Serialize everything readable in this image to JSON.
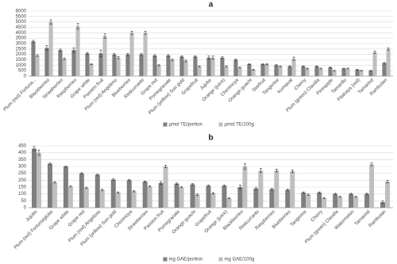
{
  "chart_data": [
    {
      "type": "bar",
      "title": "a",
      "categories": [
        "Plum (red) Fortuna...",
        "Blackberries",
        "Strawberries",
        "Raspberries",
        "Grape white",
        "Passion fruit",
        "Plum (red) Angeleno",
        "Blueberries",
        "Redcurrants",
        "Grape red",
        "Pomegranate",
        "Plum (yellow) Sun gold",
        "Grapefruit",
        "Jujube",
        "Orange (juice)",
        "Cherimoya",
        "Orange guachi",
        "Starfruit",
        "Tangerine",
        "Kumquat",
        "Cherry",
        "Plum (green) Claudia",
        "Pineapple",
        "Tamarillo",
        "Pitahaya (red)",
        "Tamarind",
        "Rambutan"
      ],
      "series": [
        {
          "name": "µmol TE/portion",
          "color": "#7f7f7f",
          "values": [
            3200,
            2600,
            2400,
            2400,
            2100,
            2100,
            2000,
            2000,
            2000,
            1900,
            1900,
            1800,
            1800,
            1700,
            1700,
            1500,
            1100,
            1100,
            1000,
            900,
            900,
            900,
            800,
            700,
            600,
            500,
            1200
          ],
          "errors": [
            100,
            200,
            100,
            200,
            80,
            300,
            100,
            100,
            100,
            80,
            80,
            80,
            80,
            150,
            80,
            80,
            50,
            60,
            50,
            60,
            50,
            50,
            40,
            40,
            40,
            30,
            60
          ]
        },
        {
          "name": "µmol TE/100g",
          "color": "#bfbfbf",
          "values": [
            1900,
            5000,
            1600,
            4600,
            1100,
            3700,
            1700,
            4000,
            4000,
            1000,
            1500,
            1400,
            900,
            1700,
            900,
            800,
            600,
            1100,
            900,
            1600,
            700,
            700,
            500,
            700,
            500,
            2200,
            2500
          ],
          "errors": [
            80,
            200,
            80,
            250,
            50,
            200,
            100,
            150,
            150,
            50,
            80,
            80,
            50,
            150,
            60,
            60,
            40,
            60,
            50,
            150,
            40,
            40,
            30,
            40,
            40,
            100,
            100
          ]
        }
      ],
      "ylim": [
        0,
        6000
      ],
      "yticks": [
        0,
        500,
        1000,
        1500,
        2000,
        2500,
        3000,
        3500,
        4000,
        4500,
        5000,
        5500,
        6000
      ],
      "grid": true,
      "legend": "bottom"
    },
    {
      "type": "bar",
      "title": "b",
      "categories": [
        "Jujube",
        "Plum (red) Fortuna/globe",
        "Grape white",
        "Grape red",
        "Plum (red) Angeleno",
        "Plum (yellow) Sun gold",
        "Cherimoya",
        "Strawberries",
        "Passion fruit",
        "Pomegranate",
        "Orange guachi",
        "Grapefruit",
        "Orange (juice)",
        "Blackberries",
        "Redcurrants",
        "Raspberries",
        "Blueberries",
        "Tangerine",
        "Cherry",
        "Plum (green) Claudia",
        "Watermelon",
        "Tamarind",
        "Rambutan"
      ],
      "series": [
        {
          "name": "mg GAE/portion",
          "color": "#7f7f7f",
          "values": [
            430,
            320,
            300,
            250,
            240,
            205,
            200,
            190,
            180,
            175,
            170,
            160,
            160,
            150,
            140,
            135,
            130,
            110,
            110,
            100,
            100,
            100,
            40
          ],
          "errors": [
            15,
            5,
            5,
            5,
            5,
            5,
            5,
            5,
            10,
            5,
            5,
            5,
            5,
            15,
            10,
            5,
            5,
            5,
            5,
            5,
            5,
            5,
            10
          ]
        },
        {
          "name": "mg GAE/100g",
          "color": "#bfbfbf",
          "values": [
            400,
            185,
            155,
            145,
            130,
            110,
            120,
            155,
            300,
            150,
            95,
            105,
            70,
            300,
            270,
            270,
            265,
            95,
            70,
            80,
            80,
            315,
            190
          ],
          "errors": [
            20,
            5,
            5,
            5,
            5,
            5,
            5,
            5,
            10,
            5,
            5,
            5,
            5,
            20,
            15,
            10,
            10,
            5,
            5,
            5,
            5,
            10,
            10
          ]
        }
      ],
      "ylim": [
        0,
        450
      ],
      "yticks": [
        0,
        50,
        100,
        150,
        200,
        250,
        300,
        350,
        400,
        450
      ],
      "grid": true,
      "legend": "bottom"
    }
  ]
}
